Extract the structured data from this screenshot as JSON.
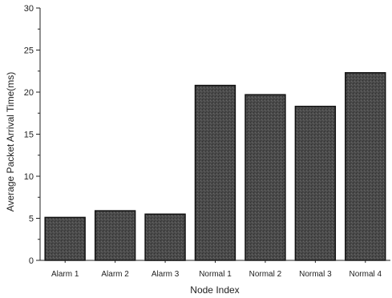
{
  "chart_data": {
    "type": "bar",
    "title": "",
    "xlabel": "Node Index",
    "ylabel": "Average Packet Arrival Time(ms)",
    "categories": [
      "Alarm 1",
      "Alarm 2",
      "Alarm 3",
      "Normal 1",
      "Normal 2",
      "Normal 3",
      "Normal 4"
    ],
    "values": [
      5.1,
      5.9,
      5.5,
      20.8,
      19.7,
      18.3,
      22.3
    ],
    "ylim": [
      0,
      30
    ],
    "yticks": [
      "0",
      "5",
      "10",
      "15",
      "20",
      "25",
      "30"
    ],
    "grid": false,
    "legend": "none",
    "bar_color": "#4a4a4a"
  }
}
